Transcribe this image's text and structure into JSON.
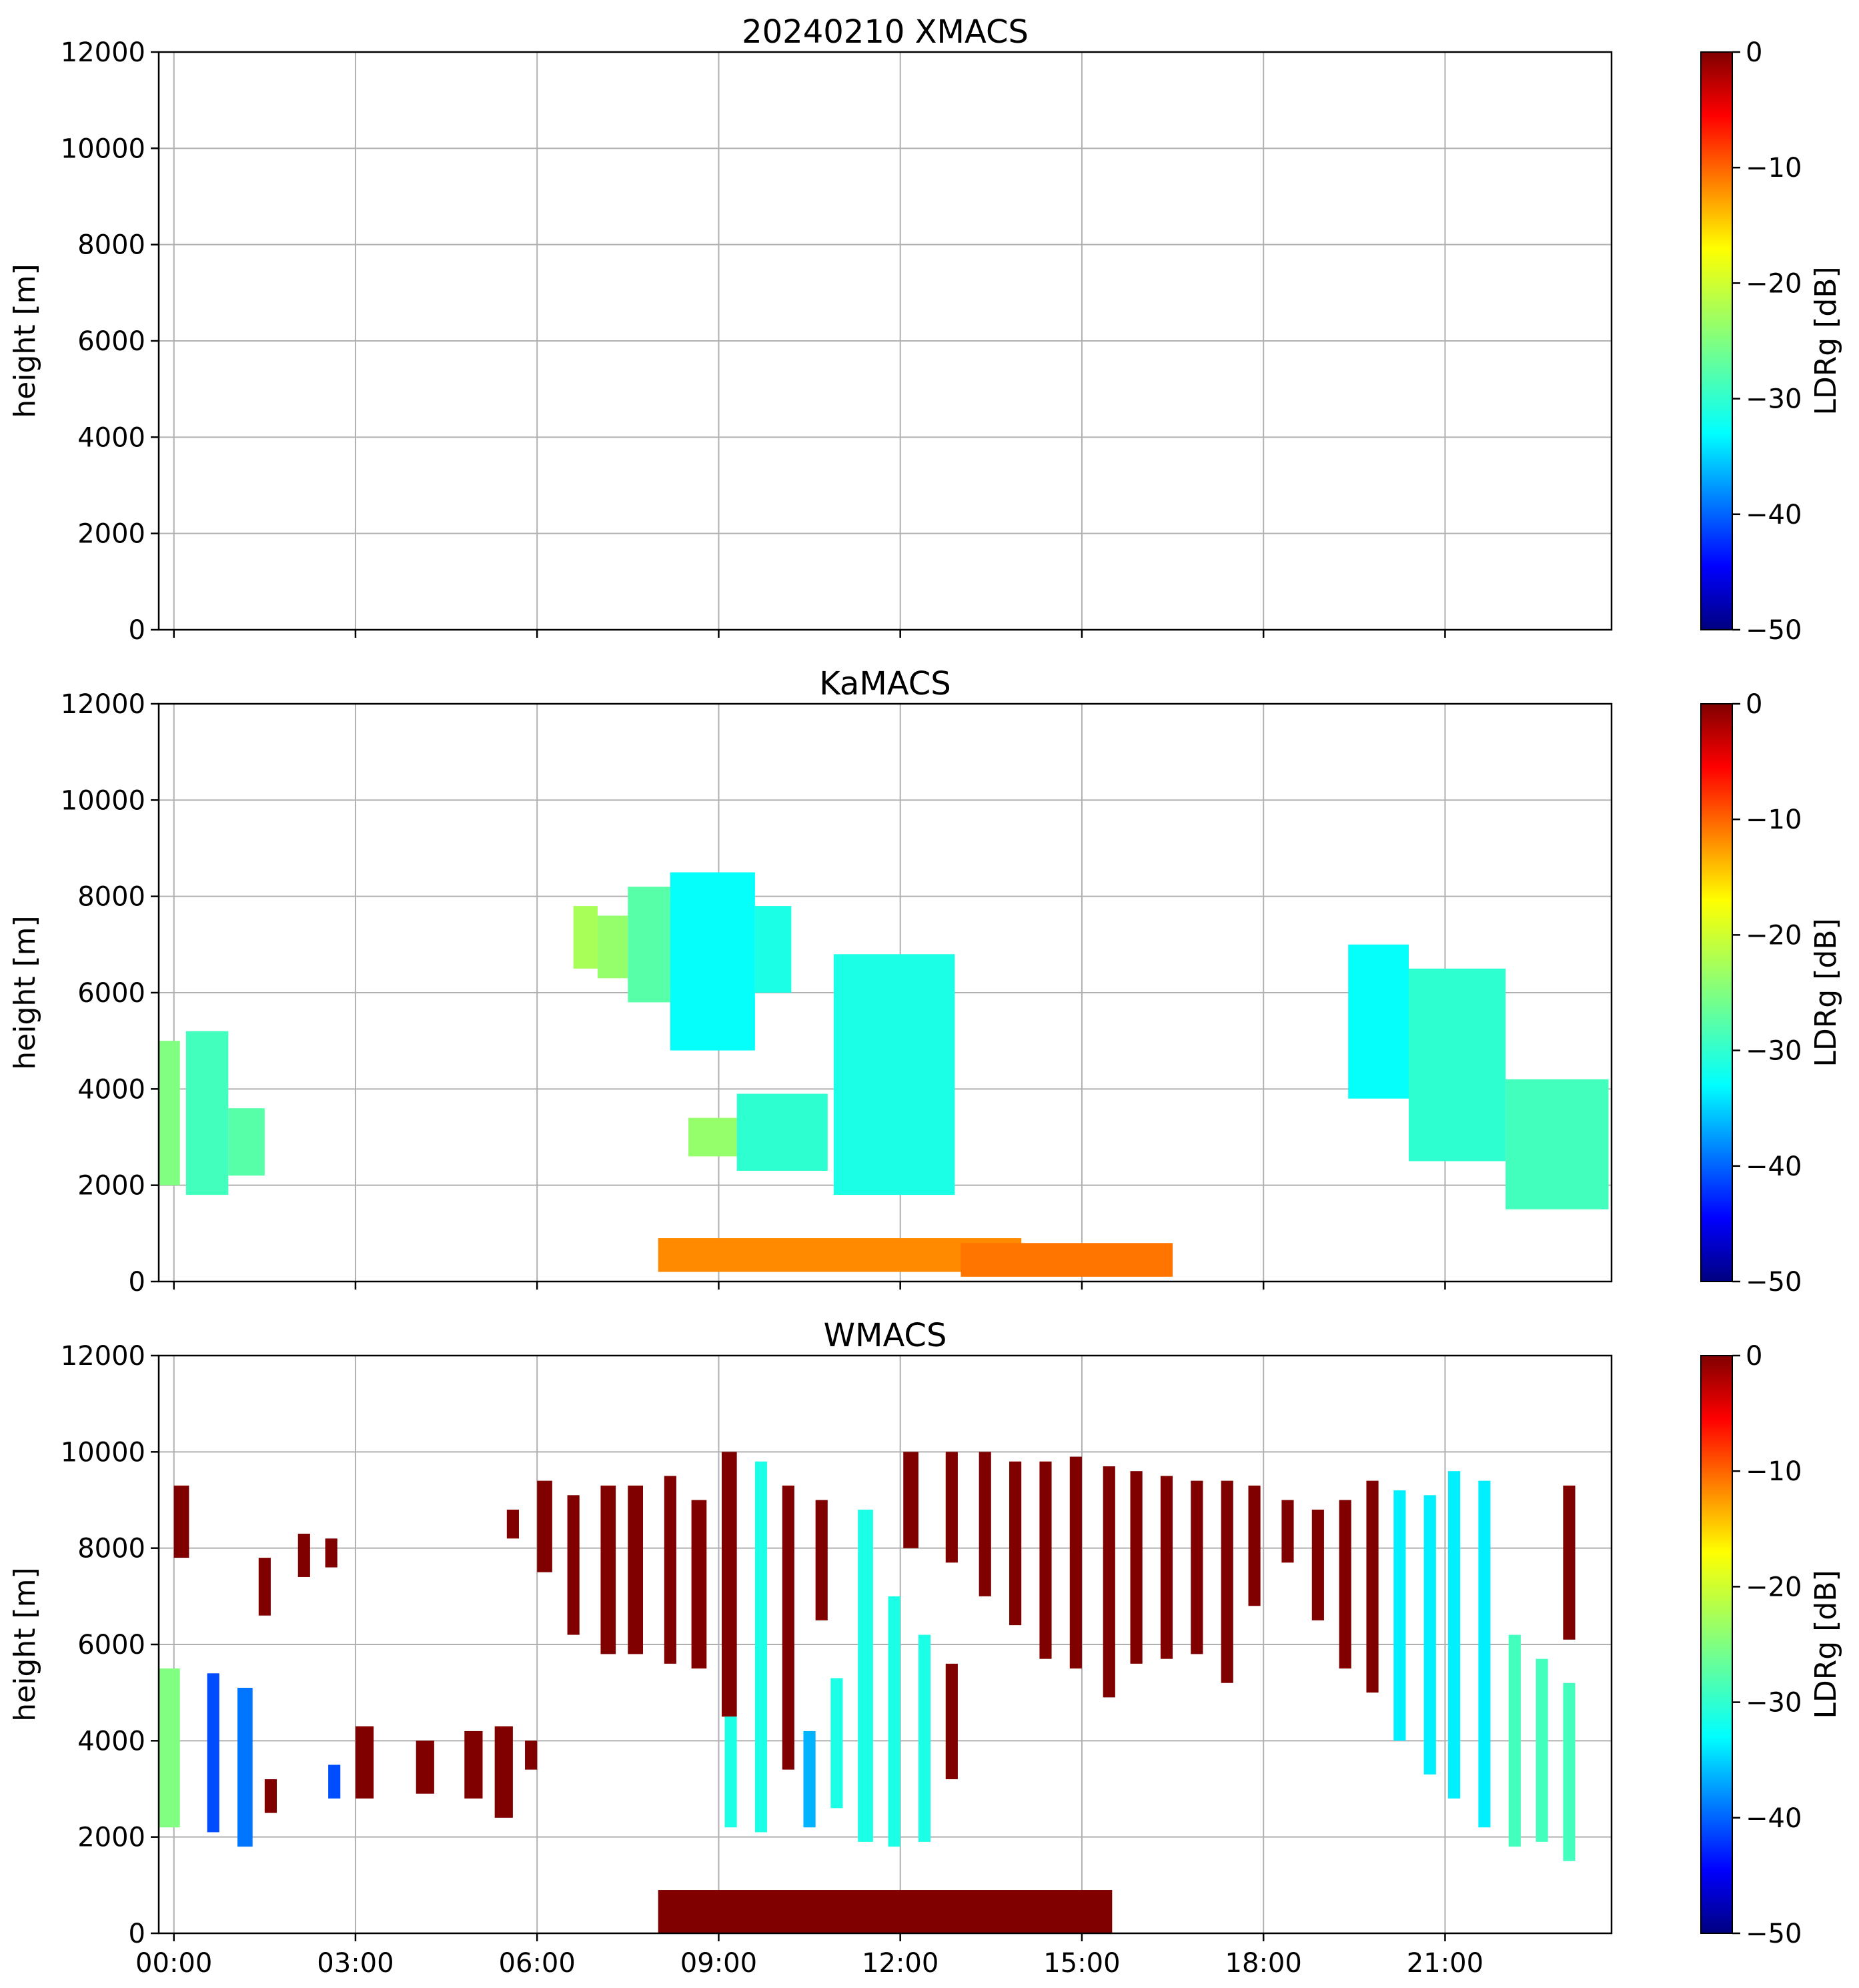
{
  "colorbar": {
    "label": "LDRg [dB]",
    "range": [
      -50,
      0
    ],
    "ticks": [
      0,
      -10,
      -20,
      -30,
      -40,
      -50
    ],
    "tick_labels": [
      "0",
      "−10",
      "−20",
      "−30",
      "−40",
      "−50"
    ],
    "colormap": "jet"
  },
  "chart_data": [
    {
      "type": "heatmap",
      "title": "20240210 XMACS",
      "xlabel": "",
      "ylabel": "height [m]",
      "xlim": [
        -0.25,
        23.75
      ],
      "ylim": [
        0,
        12000
      ],
      "yticks": [
        0,
        2000,
        4000,
        6000,
        8000,
        10000,
        12000
      ],
      "ytick_labels": [
        "0",
        "2000",
        "4000",
        "6000",
        "8000",
        "10000",
        "12000"
      ],
      "grid": true,
      "regions": []
    },
    {
      "type": "heatmap",
      "title": "KaMACS",
      "xlabel": "",
      "ylabel": "height [m]",
      "xlim": [
        -0.25,
        23.75
      ],
      "ylim": [
        0,
        12000
      ],
      "yticks": [
        0,
        2000,
        4000,
        6000,
        8000,
        10000,
        12000
      ],
      "ytick_labels": [
        "0",
        "2000",
        "4000",
        "6000",
        "8000",
        "10000",
        "12000"
      ],
      "grid": true,
      "regions": [
        {
          "t0": -0.25,
          "t1": 0.1,
          "h0": 2000,
          "h1": 5000,
          "ldr": -25
        },
        {
          "t0": 0.2,
          "t1": 0.9,
          "h0": 1800,
          "h1": 5200,
          "ldr": -28
        },
        {
          "t0": 0.9,
          "t1": 1.5,
          "h0": 2200,
          "h1": 3600,
          "ldr": -27
        },
        {
          "t0": 6.6,
          "t1": 7.0,
          "h0": 6500,
          "h1": 7800,
          "ldr": -23
        },
        {
          "t0": 7.0,
          "t1": 7.5,
          "h0": 6300,
          "h1": 7600,
          "ldr": -24
        },
        {
          "t0": 7.5,
          "t1": 8.2,
          "h0": 5800,
          "h1": 8200,
          "ldr": -27
        },
        {
          "t0": 8.2,
          "t1": 9.6,
          "h0": 4800,
          "h1": 8500,
          "ldr": -31
        },
        {
          "t0": 9.6,
          "t1": 10.2,
          "h0": 6000,
          "h1": 7800,
          "ldr": -30
        },
        {
          "t0": 8.5,
          "t1": 9.3,
          "h0": 2600,
          "h1": 3400,
          "ldr": -24
        },
        {
          "t0": 9.3,
          "t1": 10.8,
          "h0": 2300,
          "h1": 3900,
          "ldr": -29
        },
        {
          "t0": 10.9,
          "t1": 12.9,
          "h0": 1800,
          "h1": 6800,
          "ldr": -30
        },
        {
          "t0": 19.4,
          "t1": 20.4,
          "h0": 3800,
          "h1": 7000,
          "ldr": -31
        },
        {
          "t0": 20.4,
          "t1": 22.0,
          "h0": 2500,
          "h1": 6500,
          "ldr": -29
        },
        {
          "t0": 22.0,
          "t1": 23.7,
          "h0": 1500,
          "h1": 4200,
          "ldr": -28
        },
        {
          "t0": 8.0,
          "t1": 14.0,
          "h0": 200,
          "h1": 900,
          "ldr": -13
        },
        {
          "t0": 13.0,
          "t1": 16.5,
          "h0": 100,
          "h1": 800,
          "ldr": -12
        }
      ]
    },
    {
      "type": "heatmap",
      "title": "WMACS",
      "xlabel": "",
      "ylabel": "height [m]",
      "xlim": [
        -0.25,
        23.75
      ],
      "ylim": [
        0,
        12000
      ],
      "xticks": [
        0,
        3,
        6,
        9,
        12,
        15,
        18,
        21
      ],
      "xtick_labels": [
        "00:00",
        "03:00",
        "06:00",
        "09:00",
        "12:00",
        "15:00",
        "18:00",
        "21:00"
      ],
      "yticks": [
        0,
        2000,
        4000,
        6000,
        8000,
        10000,
        12000
      ],
      "ytick_labels": [
        "0",
        "2000",
        "4000",
        "6000",
        "8000",
        "10000",
        "12000"
      ],
      "grid": true,
      "regions": [
        {
          "t0": -0.25,
          "t1": 0.1,
          "h0": 2200,
          "h1": 5500,
          "ldr": -25
        },
        {
          "t0": 0.0,
          "t1": 0.25,
          "h0": 7800,
          "h1": 9300,
          "ldr": 0
        },
        {
          "t0": 0.55,
          "t1": 0.75,
          "h0": 2100,
          "h1": 5400,
          "ldr": -40
        },
        {
          "t0": 1.05,
          "t1": 1.3,
          "h0": 1800,
          "h1": 5100,
          "ldr": -38
        },
        {
          "t0": 1.5,
          "t1": 1.7,
          "h0": 2500,
          "h1": 3200,
          "ldr": 0
        },
        {
          "t0": 1.4,
          "t1": 1.6,
          "h0": 6600,
          "h1": 7800,
          "ldr": 0
        },
        {
          "t0": 2.05,
          "t1": 2.25,
          "h0": 7400,
          "h1": 8300,
          "ldr": 0
        },
        {
          "t0": 2.5,
          "t1": 2.7,
          "h0": 7600,
          "h1": 8200,
          "ldr": 0
        },
        {
          "t0": 2.55,
          "t1": 2.75,
          "h0": 2800,
          "h1": 3500,
          "ldr": -40
        },
        {
          "t0": 3.0,
          "t1": 3.3,
          "h0": 2800,
          "h1": 4300,
          "ldr": 0
        },
        {
          "t0": 4.0,
          "t1": 4.3,
          "h0": 2900,
          "h1": 4000,
          "ldr": 0
        },
        {
          "t0": 4.8,
          "t1": 5.1,
          "h0": 2800,
          "h1": 4200,
          "ldr": 0
        },
        {
          "t0": 5.3,
          "t1": 5.6,
          "h0": 2400,
          "h1": 4300,
          "ldr": 0
        },
        {
          "t0": 5.5,
          "t1": 5.7,
          "h0": 8200,
          "h1": 8800,
          "ldr": 0
        },
        {
          "t0": 5.8,
          "t1": 6.0,
          "h0": 3400,
          "h1": 4000,
          "ldr": 0
        },
        {
          "t0": 6.0,
          "t1": 6.25,
          "h0": 7500,
          "h1": 9400,
          "ldr": 0
        },
        {
          "t0": 6.5,
          "t1": 6.7,
          "h0": 6200,
          "h1": 9100,
          "ldr": 0
        },
        {
          "t0": 7.05,
          "t1": 7.3,
          "h0": 5800,
          "h1": 9300,
          "ldr": 0
        },
        {
          "t0": 7.5,
          "t1": 7.75,
          "h0": 5800,
          "h1": 9300,
          "ldr": 0
        },
        {
          "t0": 8.1,
          "t1": 8.3,
          "h0": 5600,
          "h1": 9500,
          "ldr": 0
        },
        {
          "t0": 8.55,
          "t1": 8.8,
          "h0": 5500,
          "h1": 9000,
          "ldr": 0
        },
        {
          "t0": 9.05,
          "t1": 9.3,
          "h0": 4500,
          "h1": 10000,
          "ldr": 0
        },
        {
          "t0": 9.1,
          "t1": 9.3,
          "h0": 2200,
          "h1": 4500,
          "ldr": -30
        },
        {
          "t0": 9.6,
          "t1": 9.8,
          "h0": 2100,
          "h1": 9800,
          "ldr": -30
        },
        {
          "t0": 10.05,
          "t1": 10.25,
          "h0": 3400,
          "h1": 9300,
          "ldr": 0
        },
        {
          "t0": 10.4,
          "t1": 10.6,
          "h0": 2200,
          "h1": 4200,
          "ldr": -35
        },
        {
          "t0": 10.6,
          "t1": 10.8,
          "h0": 6500,
          "h1": 9000,
          "ldr": 0
        },
        {
          "t0": 10.85,
          "t1": 11.05,
          "h0": 2600,
          "h1": 5300,
          "ldr": -30
        },
        {
          "t0": 11.3,
          "t1": 11.55,
          "h0": 1900,
          "h1": 8800,
          "ldr": -30
        },
        {
          "t0": 11.8,
          "t1": 12.0,
          "h0": 1800,
          "h1": 7000,
          "ldr": -30
        },
        {
          "t0": 12.05,
          "t1": 12.3,
          "h0": 8000,
          "h1": 10000,
          "ldr": 0
        },
        {
          "t0": 12.3,
          "t1": 12.5,
          "h0": 1900,
          "h1": 6200,
          "ldr": -30
        },
        {
          "t0": 12.75,
          "t1": 12.95,
          "h0": 3200,
          "h1": 5600,
          "ldr": 0
        },
        {
          "t0": 12.75,
          "t1": 12.95,
          "h0": 7700,
          "h1": 10000,
          "ldr": 0
        },
        {
          "t0": 13.3,
          "t1": 13.5,
          "h0": 7000,
          "h1": 10000,
          "ldr": 0
        },
        {
          "t0": 13.8,
          "t1": 14.0,
          "h0": 6400,
          "h1": 9800,
          "ldr": 0
        },
        {
          "t0": 14.3,
          "t1": 14.5,
          "h0": 5700,
          "h1": 9800,
          "ldr": 0
        },
        {
          "t0": 14.8,
          "t1": 15.0,
          "h0": 5500,
          "h1": 9900,
          "ldr": 0
        },
        {
          "t0": 15.35,
          "t1": 15.55,
          "h0": 4900,
          "h1": 9700,
          "ldr": 0
        },
        {
          "t0": 15.8,
          "t1": 16.0,
          "h0": 5600,
          "h1": 9600,
          "ldr": 0
        },
        {
          "t0": 16.3,
          "t1": 16.5,
          "h0": 5700,
          "h1": 9500,
          "ldr": 0
        },
        {
          "t0": 16.8,
          "t1": 17.0,
          "h0": 5800,
          "h1": 9400,
          "ldr": 0
        },
        {
          "t0": 17.3,
          "t1": 17.5,
          "h0": 5200,
          "h1": 9400,
          "ldr": 0
        },
        {
          "t0": 17.75,
          "t1": 17.95,
          "h0": 6800,
          "h1": 9300,
          "ldr": 0
        },
        {
          "t0": 18.3,
          "t1": 18.5,
          "h0": 7700,
          "h1": 9000,
          "ldr": 0
        },
        {
          "t0": 18.8,
          "t1": 19.0,
          "h0": 6500,
          "h1": 8800,
          "ldr": 0
        },
        {
          "t0": 19.25,
          "t1": 19.45,
          "h0": 5500,
          "h1": 9000,
          "ldr": 0
        },
        {
          "t0": 19.7,
          "t1": 19.9,
          "h0": 5000,
          "h1": 9400,
          "ldr": 0
        },
        {
          "t0": 20.15,
          "t1": 20.35,
          "h0": 4000,
          "h1": 9200,
          "ldr": -32
        },
        {
          "t0": 20.65,
          "t1": 20.85,
          "h0": 3300,
          "h1": 9100,
          "ldr": -32
        },
        {
          "t0": 21.05,
          "t1": 21.25,
          "h0": 2800,
          "h1": 9600,
          "ldr": -32
        },
        {
          "t0": 21.55,
          "t1": 21.75,
          "h0": 2200,
          "h1": 9400,
          "ldr": -32
        },
        {
          "t0": 22.05,
          "t1": 22.25,
          "h0": 1800,
          "h1": 6200,
          "ldr": -28
        },
        {
          "t0": 22.5,
          "t1": 22.7,
          "h0": 1900,
          "h1": 5700,
          "ldr": -28
        },
        {
          "t0": 22.95,
          "t1": 23.15,
          "h0": 1500,
          "h1": 5200,
          "ldr": -28
        },
        {
          "t0": 22.95,
          "t1": 23.15,
          "h0": 6100,
          "h1": 9300,
          "ldr": 0
        },
        {
          "t0": 8.0,
          "t1": 15.5,
          "h0": 0,
          "h1": 900,
          "ldr": 0
        }
      ]
    }
  ]
}
